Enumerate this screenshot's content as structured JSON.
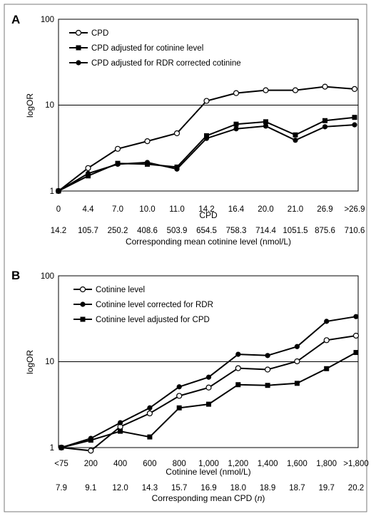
{
  "chart_data": [
    {
      "panel_label": "A",
      "type": "line",
      "yscale": "log",
      "ylim": [
        1,
        100
      ],
      "yticks": [
        "1",
        "10",
        "100"
      ],
      "ylabel": "logOR",
      "categories": [
        "0",
        "4.4",
        "7.0",
        "10.0",
        "11.0",
        "14.2",
        "16.4",
        "20.0",
        "21.0",
        "26.9",
        ">26.9"
      ],
      "xlabel": "CPD",
      "secondary_row": [
        "14.2",
        "105.7",
        "250.2",
        "408.6",
        "503.9",
        "654.5",
        "758.3",
        "714.4",
        "1051.5",
        "875.6",
        "710.6"
      ],
      "secondary_label": "Corresponding mean cotinine level (nmol/L)",
      "grid": "horizontal at 10 and 100",
      "legend_position": "top-left",
      "series": [
        {
          "name": "CPD",
          "marker": "open-circle",
          "values": [
            1.0,
            1.85,
            3.1,
            3.8,
            4.7,
            11.2,
            13.8,
            14.9,
            14.9,
            16.4,
            15.4
          ]
        },
        {
          "name": "CPD adjusted for cotinine level",
          "marker": "filled-square",
          "values": [
            1.0,
            1.5,
            2.1,
            2.05,
            1.9,
            4.4,
            6.0,
            6.4,
            4.5,
            6.6,
            7.2
          ]
        },
        {
          "name": "CPD adjusted for RDR corrected cotinine",
          "marker": "filled-circle",
          "values": [
            1.0,
            1.6,
            2.05,
            2.15,
            1.8,
            4.1,
            5.3,
            5.7,
            3.9,
            5.6,
            5.9
          ]
        }
      ]
    },
    {
      "panel_label": "B",
      "type": "line",
      "yscale": "log",
      "ylim": [
        1,
        100
      ],
      "yticks": [
        "1",
        "10",
        "100"
      ],
      "ylabel": "logOR",
      "categories": [
        "<75",
        "200",
        "400",
        "600",
        "800",
        "1,000",
        "1,200",
        "1,400",
        "1,600",
        "1,800",
        ">1,800"
      ],
      "xlabel": "Cotinine level (nmol/L)",
      "secondary_row": [
        "7.9",
        "9.1",
        "12.0",
        "14.3",
        "15.7",
        "16.9",
        "18.0",
        "18.9",
        "18.7",
        "19.7",
        "20.2"
      ],
      "secondary_label": "Corresponding mean CPD (n)",
      "secondary_label_plain": "Corresponding mean CPD (",
      "secondary_label_italic": "n",
      "secondary_label_tail": ")",
      "grid": "horizontal at 10 and 100",
      "legend_position": "top-left",
      "series": [
        {
          "name": "Cotinine level",
          "marker": "open-circle",
          "values": [
            1.0,
            0.92,
            1.75,
            2.5,
            4.0,
            5.0,
            8.4,
            8.1,
            10.1,
            17.8,
            20.1
          ]
        },
        {
          "name": "Cotinine level corrected for RDR",
          "marker": "filled-circle",
          "values": [
            1.0,
            1.28,
            1.95,
            2.9,
            5.1,
            6.6,
            12.2,
            11.8,
            15.0,
            29.5,
            33.5
          ]
        },
        {
          "name": "Cotinine level adjusted for CPD",
          "marker": "filled-square",
          "values": [
            1.0,
            1.22,
            1.55,
            1.33,
            2.9,
            3.2,
            5.4,
            5.3,
            5.6,
            8.3,
            12.8
          ]
        }
      ]
    }
  ]
}
